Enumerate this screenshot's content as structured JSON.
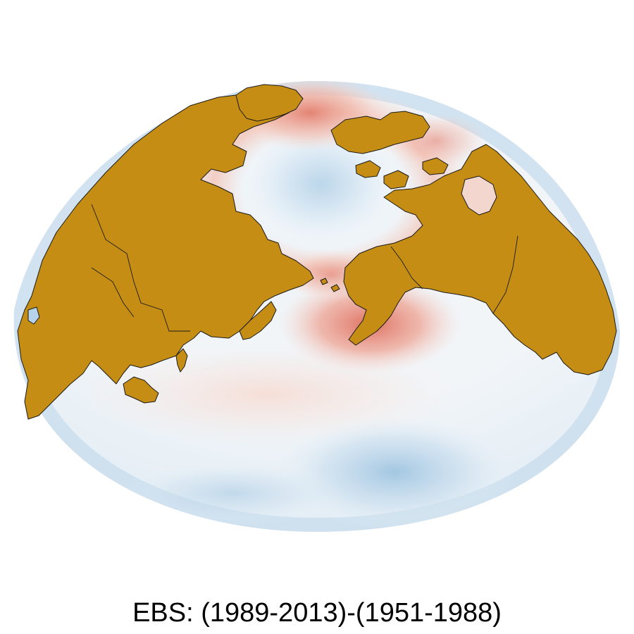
{
  "caption": "EBS: (1989-2013)-(1951-1988)",
  "colors": {
    "land": "#c58d13",
    "coastline": "#1a1a1a",
    "warm_strong": "#df6c5c",
    "warm_light": "#f7d7ce",
    "neutral": "#f4f4f2",
    "cool_light": "#dbe9f3",
    "cool_strong": "#a9cbe4"
  },
  "map": {
    "projection": "polar-centered hemispheric view",
    "color_scale": "diverging red-white-blue"
  }
}
